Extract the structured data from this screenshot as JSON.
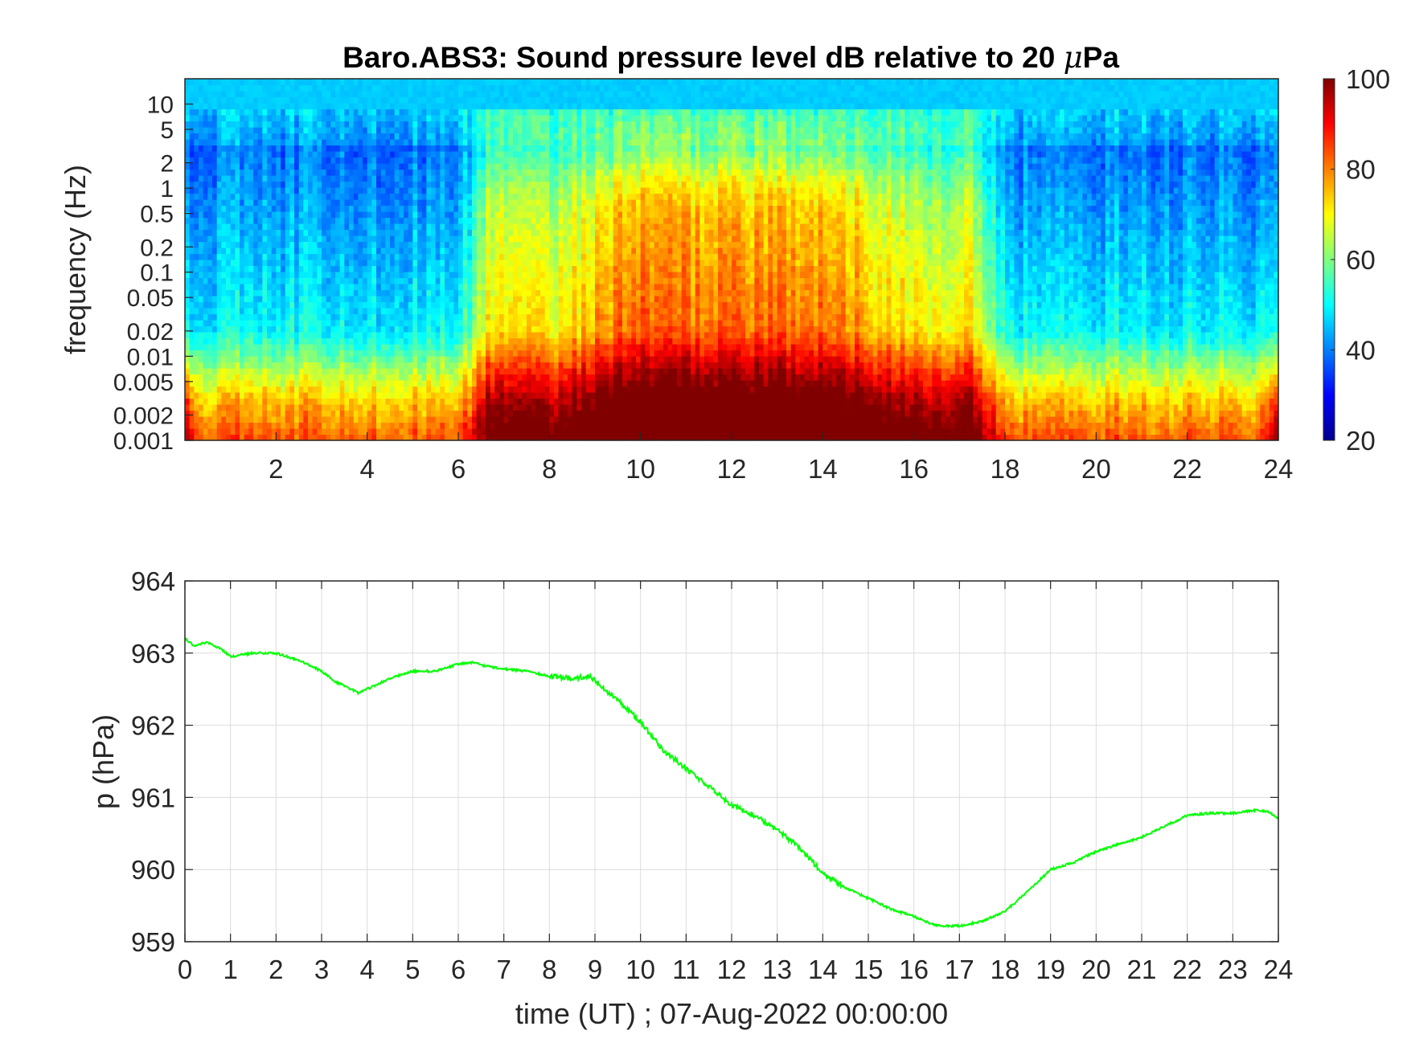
{
  "chart_data": [
    {
      "type": "heatmap",
      "title_prefix": "Baro.ABS3: Sound pressure level dB relative to 20 ",
      "title_mu": "μ",
      "title_suffix": "Pa",
      "ylabel": "frequency (Hz)",
      "y_scale": "log",
      "ylim": [
        0.001,
        20
      ],
      "xlim": [
        0,
        24
      ],
      "x_ticks": [
        "2",
        "4",
        "6",
        "8",
        "10",
        "12",
        "14",
        "16",
        "18",
        "20",
        "22",
        "24"
      ],
      "y_ticks": [
        "10",
        "5",
        "2",
        "1",
        "0.5",
        "0.2",
        "0.1",
        "0.05",
        "0.02",
        "0.01",
        "0.005",
        "0.002",
        "0.001"
      ],
      "colormap": "jet",
      "clim": [
        20,
        100
      ],
      "colorbar_ticks": [
        "100",
        "80",
        "60",
        "40",
        "20"
      ],
      "quiet_period_hours": [
        [
          0,
          6.2
        ],
        [
          17.8,
          24
        ]
      ],
      "active_period_hours": [
        6.2,
        17.8
      ],
      "peak_active_hours": [
        9.5,
        14.5
      ]
    },
    {
      "type": "line",
      "xlabel": "time (UT) ; 07-Aug-2022 00:00:00",
      "ylabel": "p (hPa)",
      "xlim": [
        0,
        24
      ],
      "ylim": [
        959,
        964
      ],
      "x_ticks": [
        "0",
        "1",
        "2",
        "3",
        "4",
        "5",
        "6",
        "7",
        "8",
        "9",
        "10",
        "11",
        "12",
        "13",
        "14",
        "15",
        "16",
        "17",
        "18",
        "19",
        "20",
        "21",
        "22",
        "23",
        "24"
      ],
      "y_ticks": [
        "964",
        "963",
        "962",
        "961",
        "960",
        "959"
      ],
      "grid": true,
      "series": [
        {
          "color": "#00ff00",
          "x": [
            0,
            0.2,
            0.5,
            0.8,
            1.0,
            1.5,
            2.0,
            2.5,
            3.0,
            3.3,
            3.5,
            3.8,
            4.0,
            4.5,
            5.0,
            5.5,
            6.0,
            6.3,
            6.6,
            7.0,
            7.5,
            8.0,
            8.5,
            8.9,
            9.2,
            9.5,
            10.0,
            10.5,
            11.0,
            11.5,
            12.0,
            12.5,
            13.0,
            13.5,
            14.0,
            14.5,
            15.0,
            15.5,
            16.0,
            16.5,
            17.0,
            17.5,
            18.0,
            18.5,
            19.0,
            19.5,
            20.0,
            20.5,
            21.0,
            21.5,
            22.0,
            22.5,
            23.0,
            23.5,
            23.8,
            24.0
          ],
          "y": [
            963.2,
            963.1,
            963.15,
            963.05,
            962.95,
            963.0,
            963.0,
            962.9,
            962.75,
            962.6,
            962.55,
            962.45,
            962.5,
            962.65,
            962.75,
            962.75,
            962.85,
            962.87,
            962.82,
            962.78,
            962.75,
            962.68,
            962.65,
            962.68,
            962.5,
            962.35,
            962.05,
            961.65,
            961.4,
            961.15,
            960.9,
            960.75,
            960.55,
            960.3,
            959.95,
            959.75,
            959.6,
            959.45,
            959.35,
            959.22,
            959.22,
            959.28,
            959.42,
            959.7,
            960.0,
            960.1,
            960.25,
            960.35,
            960.45,
            960.6,
            960.75,
            960.78,
            960.78,
            960.82,
            960.8,
            960.7
          ]
        }
      ]
    }
  ]
}
